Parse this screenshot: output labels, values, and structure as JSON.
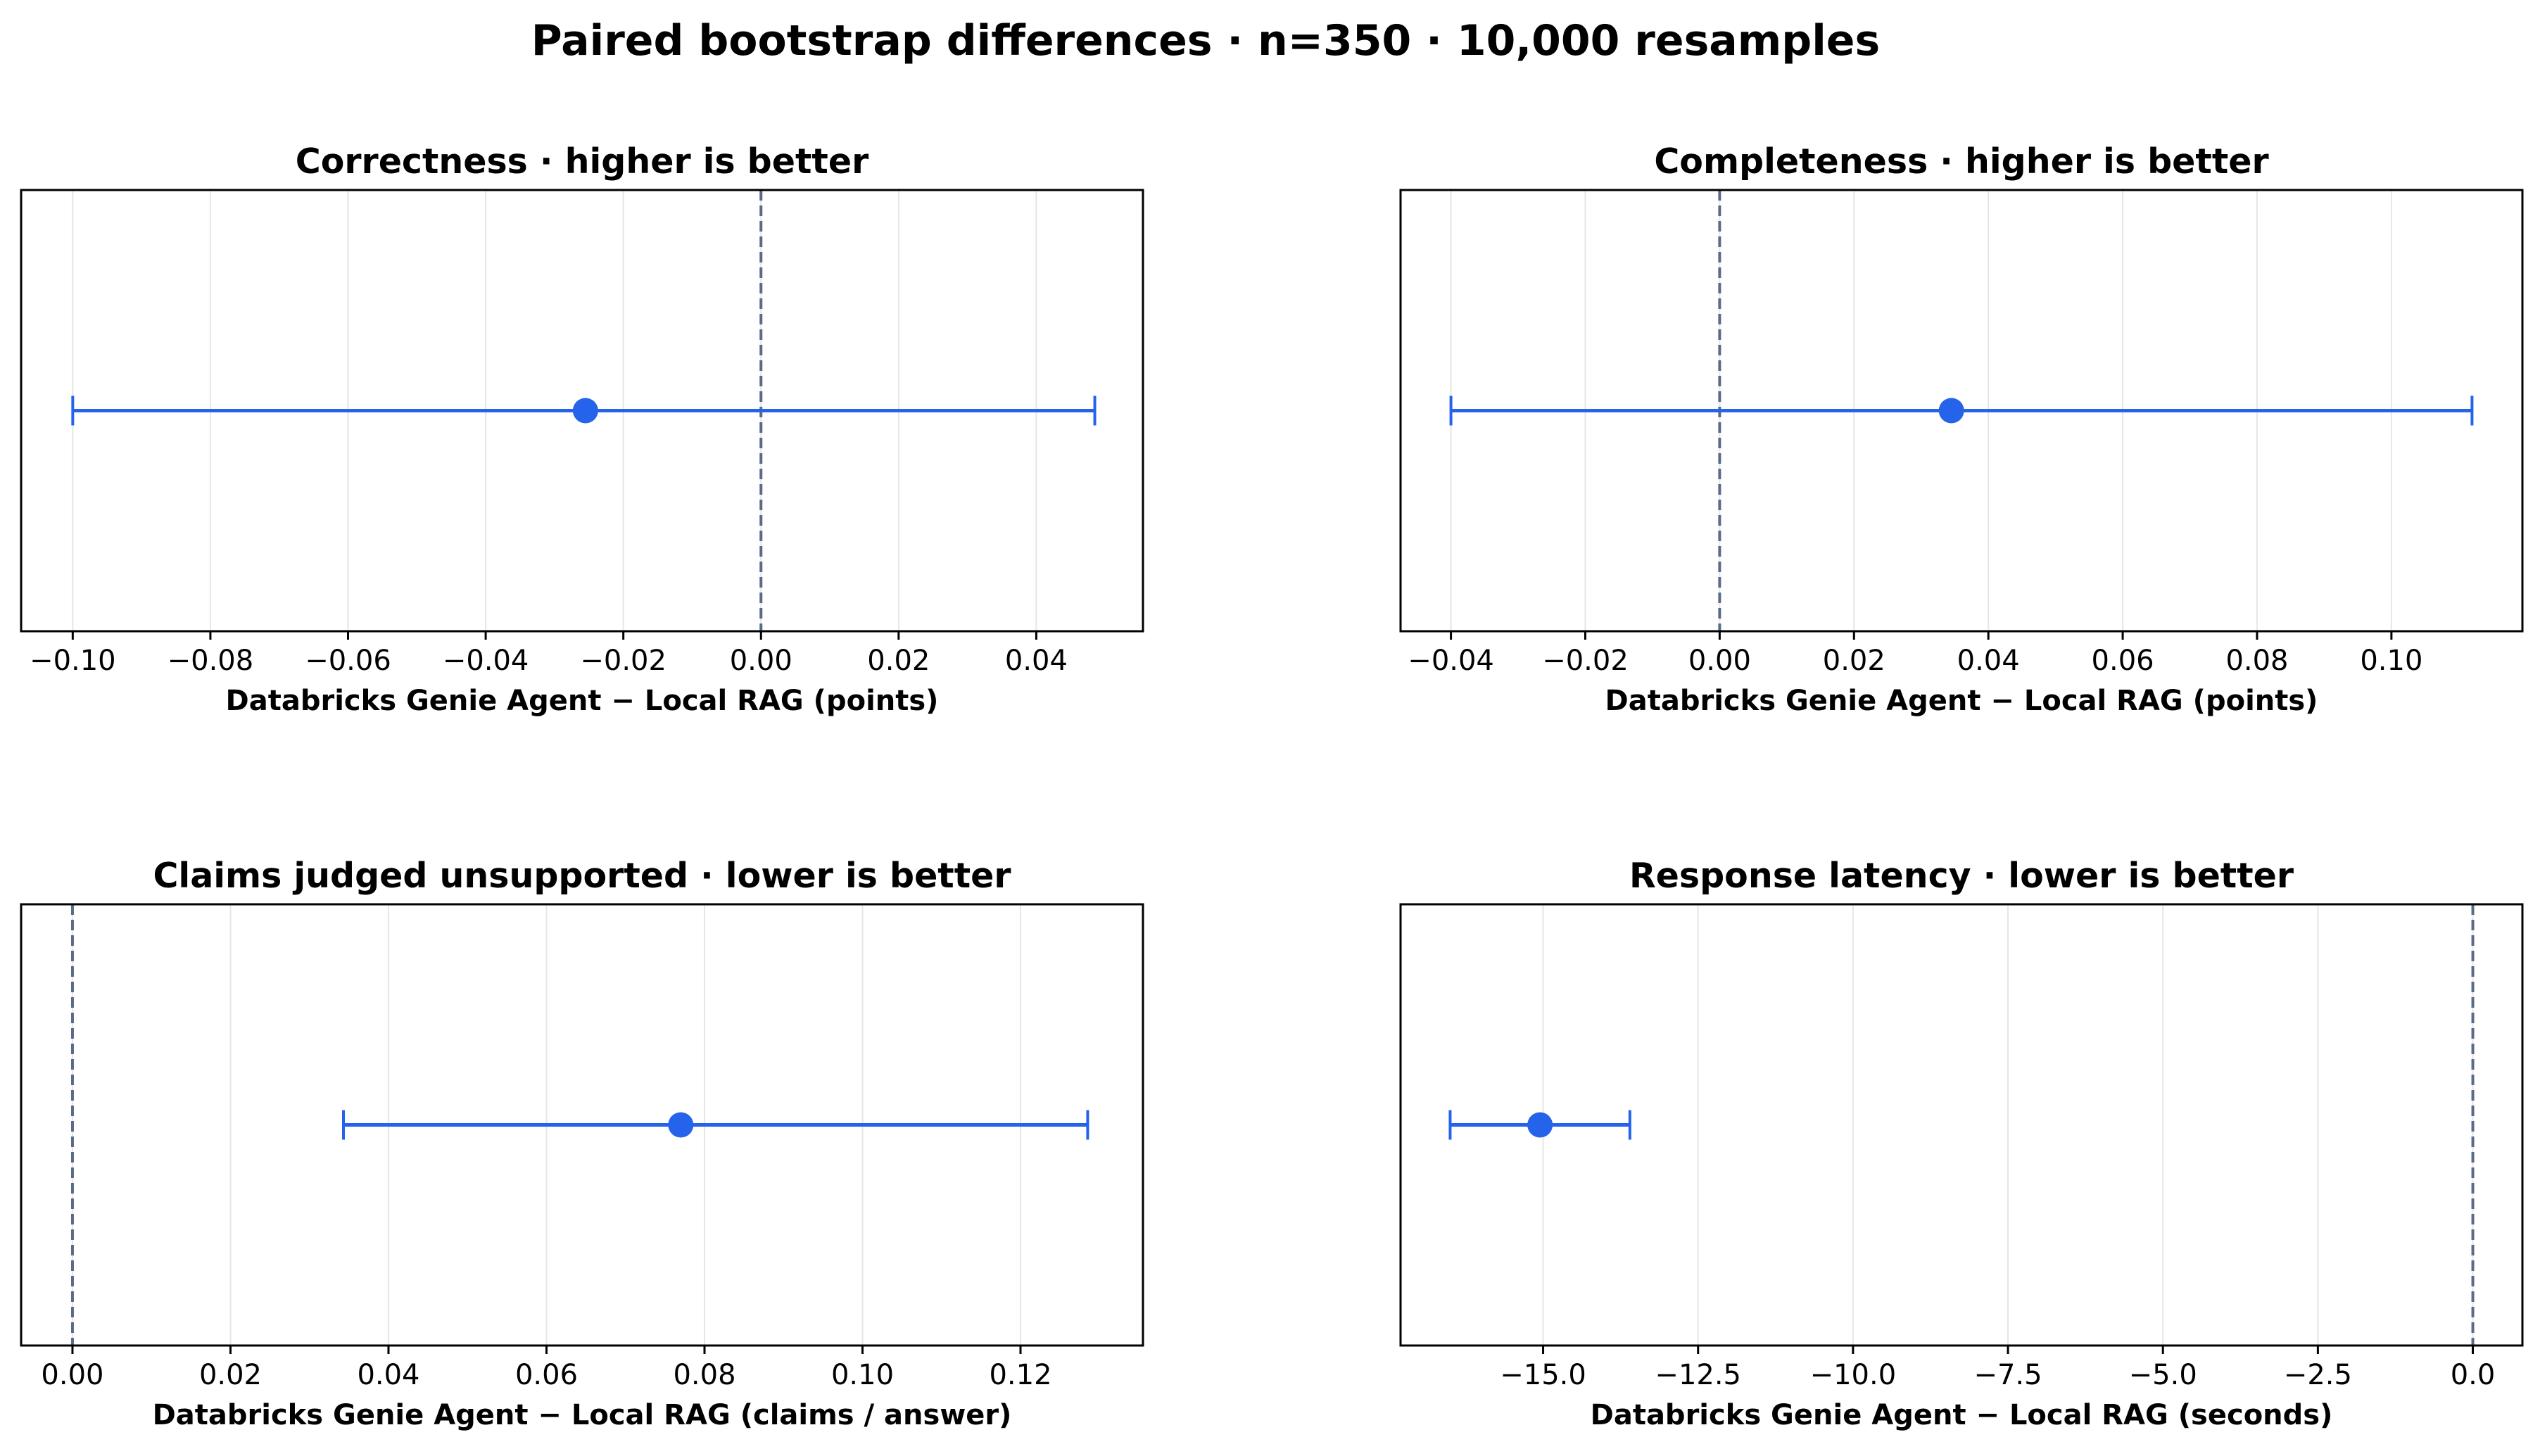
{
  "figure": {
    "suptitle": "Paired bootstrap differences · n=350 · 10,000 resamples"
  },
  "colors": {
    "estimate": "#2563eb",
    "zero_line": "#5a6b85",
    "grid": "#e6e6e6",
    "axes": "#000000"
  },
  "chart_data": [
    {
      "type": "errorbar",
      "title": "Correctness · higher is better",
      "xlabel": "Databricks Genie Agent − Local RAG (points)",
      "xlim": [
        -0.1075,
        0.0555
      ],
      "ticks": [
        -0.1,
        -0.08,
        -0.06,
        -0.04,
        -0.02,
        0.0,
        0.02,
        0.04
      ],
      "tick_labels": [
        "−0.10",
        "−0.08",
        "−0.06",
        "−0.04",
        "−0.02",
        "0.00",
        "0.02",
        "0.04"
      ],
      "estimate": -0.0255,
      "ci_low": -0.1,
      "ci_high": 0.0485,
      "reference": 0,
      "grid": "vertical"
    },
    {
      "type": "errorbar",
      "title": "Completeness · higher is better",
      "xlabel": "Databricks Genie Agent − Local RAG (points)",
      "xlim": [
        -0.0475,
        0.1195
      ],
      "ticks": [
        -0.04,
        -0.02,
        0.0,
        0.02,
        0.04,
        0.06,
        0.08,
        0.1
      ],
      "tick_labels": [
        "−0.04",
        "−0.02",
        "0.00",
        "0.02",
        "0.04",
        "0.06",
        "0.08",
        "0.10"
      ],
      "estimate": 0.0345,
      "ci_low": -0.04,
      "ci_high": 0.112,
      "reference": 0,
      "grid": "vertical"
    },
    {
      "type": "errorbar",
      "title": "Claims judged unsupported · lower is better",
      "xlabel": "Databricks Genie Agent − Local RAG (claims / answer)",
      "xlim": [
        -0.0065,
        0.1355
      ],
      "ticks": [
        0.0,
        0.02,
        0.04,
        0.06,
        0.08,
        0.1,
        0.12
      ],
      "tick_labels": [
        "0.00",
        "0.02",
        "0.04",
        "0.06",
        "0.08",
        "0.10",
        "0.12"
      ],
      "estimate": 0.077,
      "ci_low": 0.0343,
      "ci_high": 0.1285,
      "reference": 0,
      "grid": "vertical"
    },
    {
      "type": "errorbar",
      "title": "Response latency · lower is better",
      "xlabel": "Databricks Genie Agent − Local RAG (seconds)",
      "xlim": [
        -17.3,
        0.8
      ],
      "ticks": [
        -15.0,
        -12.5,
        -10.0,
        -7.5,
        -5.0,
        -2.5,
        0.0
      ],
      "tick_labels": [
        "−15.0",
        "−12.5",
        "−10.0",
        "−7.5",
        "−5.0",
        "−2.5",
        "0.0"
      ],
      "estimate": -15.05,
      "ci_low": -16.5,
      "ci_high": -13.6,
      "reference": 0,
      "grid": "vertical"
    }
  ]
}
